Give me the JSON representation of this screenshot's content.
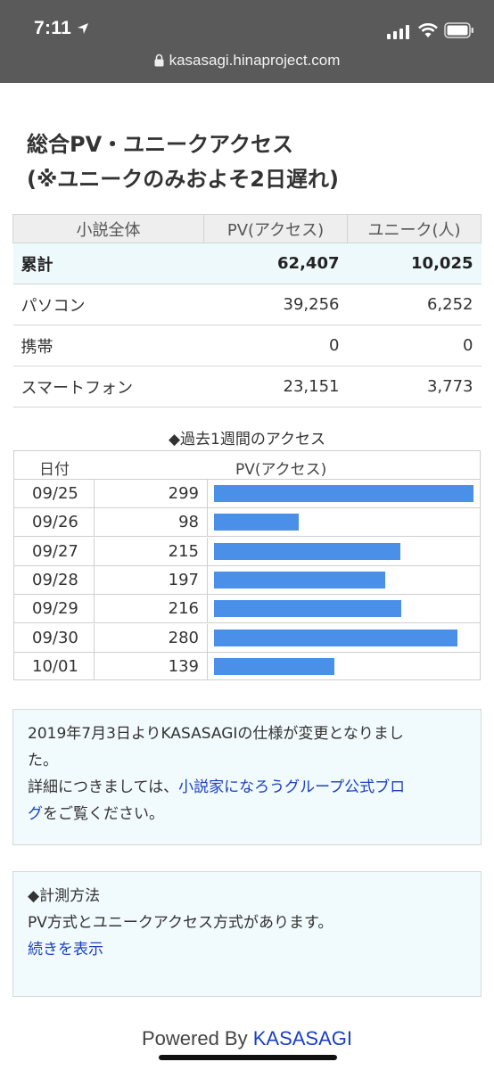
{
  "status": {
    "time": "7:11"
  },
  "browser": {
    "url": "kasasagi.hinaproject.com"
  },
  "page": {
    "title_line1": "総合PV・ユニークアクセス",
    "title_line2": "(※ユニークのみおよそ2日遅れ)"
  },
  "summary": {
    "headers": [
      "小説全体",
      "PV(アクセス)",
      "ユニーク(人)"
    ],
    "rows": [
      {
        "label": "累計",
        "pv": "62,407",
        "unique": "10,025"
      },
      {
        "label": "パソコン",
        "pv": "39,256",
        "unique": "6,252"
      },
      {
        "label": "携帯",
        "pv": "0",
        "unique": "0"
      },
      {
        "label": "スマートフォン",
        "pv": "23,151",
        "unique": "3,773"
      }
    ]
  },
  "weekly": {
    "caption": "◆過去1週間のアクセス",
    "header_date": "日付",
    "header_pv": "PV(アクセス)",
    "bar_color": "#4a90e8",
    "max": 299,
    "rows": [
      {
        "date": "09/25",
        "pv": 299
      },
      {
        "date": "09/26",
        "pv": 98
      },
      {
        "date": "09/27",
        "pv": 215
      },
      {
        "date": "09/28",
        "pv": 197
      },
      {
        "date": "09/29",
        "pv": 216
      },
      {
        "date": "09/30",
        "pv": 280
      },
      {
        "date": "10/01",
        "pv": 139
      }
    ]
  },
  "notice": {
    "line1": "2019年7月3日よりKASASAGIの仕様が変更となりまし",
    "line2": "た。",
    "line3_prefix": "詳細につきましては、",
    "link_part1": "小説家になろうグループ公式ブロ",
    "link_part2": "グ",
    "line4_suffix": "をご覧ください。"
  },
  "method": {
    "title": "◆計測方法",
    "text": "PV方式とユニークアクセス方式があります。",
    "more_link": "続きを表示"
  },
  "footer": {
    "powered": "Powered By ",
    "brand": "KASASAGI"
  }
}
